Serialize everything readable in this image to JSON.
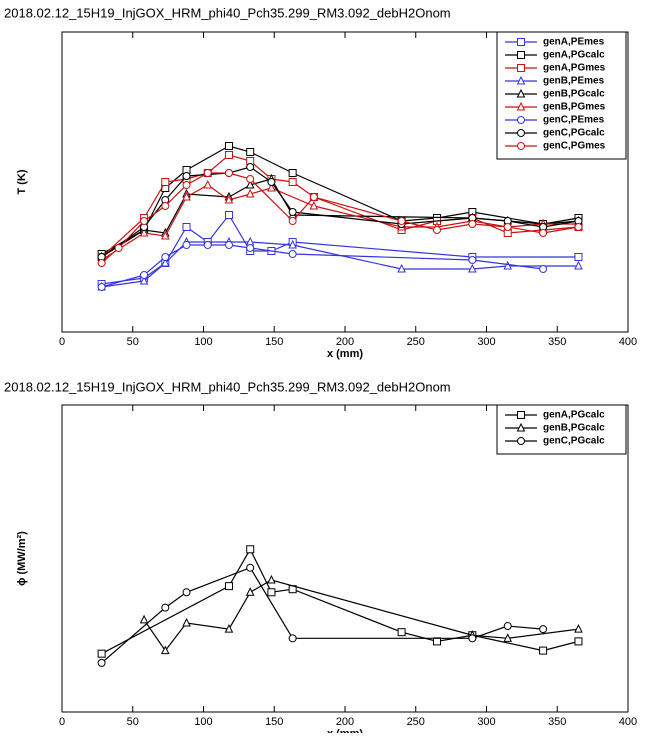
{
  "chart_data": [
    {
      "type": "line",
      "title": "2018.02.12_15H19_InjGOX_HRM_phi40_Pch35.299_RM3.092_debH2Onom",
      "x_label": "x (mm)",
      "y_label": "T (K)",
      "xlim": [
        0,
        400
      ],
      "xticks": [
        0,
        50,
        100,
        150,
        200,
        250,
        300,
        350,
        400
      ],
      "ylim": [
        0,
        100
      ],
      "legend": "top-right",
      "series": [
        {
          "name": "genA,PEmes",
          "color": "#3535e0",
          "marker": "square",
          "x": [
            28,
            58,
            73,
            88,
            103,
            118,
            133,
            148,
            163,
            290,
            365
          ],
          "values": [
            16,
            18,
            23,
            35,
            30,
            39,
            27,
            27,
            30,
            25,
            25
          ]
        },
        {
          "name": "genA,PGcalc",
          "color": "#000000",
          "marker": "square",
          "x": [
            28,
            58,
            73,
            88,
            118,
            133,
            163,
            240,
            265,
            290,
            340,
            365
          ],
          "values": [
            26,
            34,
            48,
            54,
            62,
            60,
            53,
            37,
            38,
            40,
            36,
            38
          ]
        },
        {
          "name": "genA,PGmes",
          "color": "#cc1111",
          "marker": "square",
          "x": [
            28,
            58,
            73,
            88,
            103,
            118,
            133,
            148,
            163,
            178,
            240,
            265,
            290,
            315,
            340,
            365
          ],
          "values": [
            25,
            38,
            50,
            51,
            53,
            59,
            57,
            51,
            50,
            45,
            34,
            37,
            38,
            33,
            34,
            35
          ]
        },
        {
          "name": "genB,PEmes",
          "color": "#3535e0",
          "marker": "triangle",
          "x": [
            28,
            58,
            73,
            88,
            118,
            133,
            163,
            240,
            290,
            315,
            365
          ],
          "values": [
            15,
            17,
            23,
            30,
            30,
            30,
            29,
            21,
            21,
            22,
            22
          ]
        },
        {
          "name": "genB,PGcalc",
          "color": "#000000",
          "marker": "triangle",
          "x": [
            28,
            58,
            73,
            88,
            118,
            133,
            148,
            163,
            290,
            315,
            340,
            365
          ],
          "values": [
            25,
            34,
            33,
            46,
            45,
            49,
            51,
            39,
            38,
            37,
            36,
            37
          ]
        },
        {
          "name": "genB,PGmes",
          "color": "#cc1111",
          "marker": "triangle",
          "x": [
            28,
            58,
            73,
            88,
            103,
            118,
            133,
            148,
            178,
            240,
            265,
            290,
            315,
            340,
            365
          ],
          "values": [
            24,
            33,
            32,
            45,
            49,
            44,
            46,
            48,
            42,
            35,
            35,
            37,
            35,
            36,
            36
          ]
        },
        {
          "name": "genC,PEmes",
          "color": "#3535e0",
          "marker": "circle",
          "x": [
            28,
            58,
            73,
            88,
            103,
            118,
            133,
            163,
            290,
            340
          ],
          "values": [
            15,
            19,
            25,
            29,
            29,
            29,
            28,
            26,
            24,
            21
          ]
        },
        {
          "name": "genC,PGcalc",
          "color": "#000000",
          "marker": "circle",
          "x": [
            28,
            58,
            73,
            88,
            118,
            133,
            148,
            163,
            240,
            290,
            315,
            340,
            365
          ],
          "values": [
            25,
            35,
            44,
            52,
            53,
            55,
            50,
            40,
            36,
            38,
            37,
            35,
            37
          ]
        },
        {
          "name": "genC,PGmes",
          "color": "#cc1111",
          "marker": "circle",
          "x": [
            28,
            40,
            58,
            73,
            88,
            103,
            118,
            133,
            163,
            178,
            240,
            265,
            290,
            315,
            340,
            365
          ],
          "values": [
            23,
            28,
            37,
            42,
            49,
            53,
            53,
            51,
            37,
            45,
            37,
            34,
            36,
            35,
            33,
            35
          ]
        }
      ]
    },
    {
      "type": "line",
      "title": "2018.02.12_15H19_InjGOX_HRM_phi40_Pch35.299_RM3.092_debH2Onom",
      "x_label": "x (mm)",
      "y_label": "ϕ (MW/m²)",
      "xlim": [
        0,
        400
      ],
      "xticks": [
        0,
        50,
        100,
        150,
        200,
        250,
        300,
        350,
        400
      ],
      "ylim": [
        0,
        100
      ],
      "legend": "top-right",
      "series": [
        {
          "name": "genA,PGcalc",
          "color": "#000000",
          "marker": "square",
          "x": [
            28,
            118,
            133,
            148,
            163,
            240,
            265,
            290,
            340,
            365
          ],
          "values": [
            19,
            41,
            53,
            39,
            40,
            26,
            23,
            25,
            20,
            23
          ]
        },
        {
          "name": "genB,PGcalc",
          "color": "#000000",
          "marker": "triangle",
          "x": [
            58,
            73,
            88,
            118,
            133,
            148,
            290,
            315,
            365
          ],
          "values": [
            30,
            20,
            29,
            27,
            39,
            43,
            25,
            24,
            27
          ]
        },
        {
          "name": "genC,PGcalc",
          "color": "#000000",
          "marker": "circle",
          "x": [
            28,
            73,
            88,
            133,
            163,
            290,
            315,
            340
          ],
          "values": [
            16,
            34,
            39,
            47,
            24,
            24,
            28,
            27
          ]
        }
      ]
    }
  ]
}
